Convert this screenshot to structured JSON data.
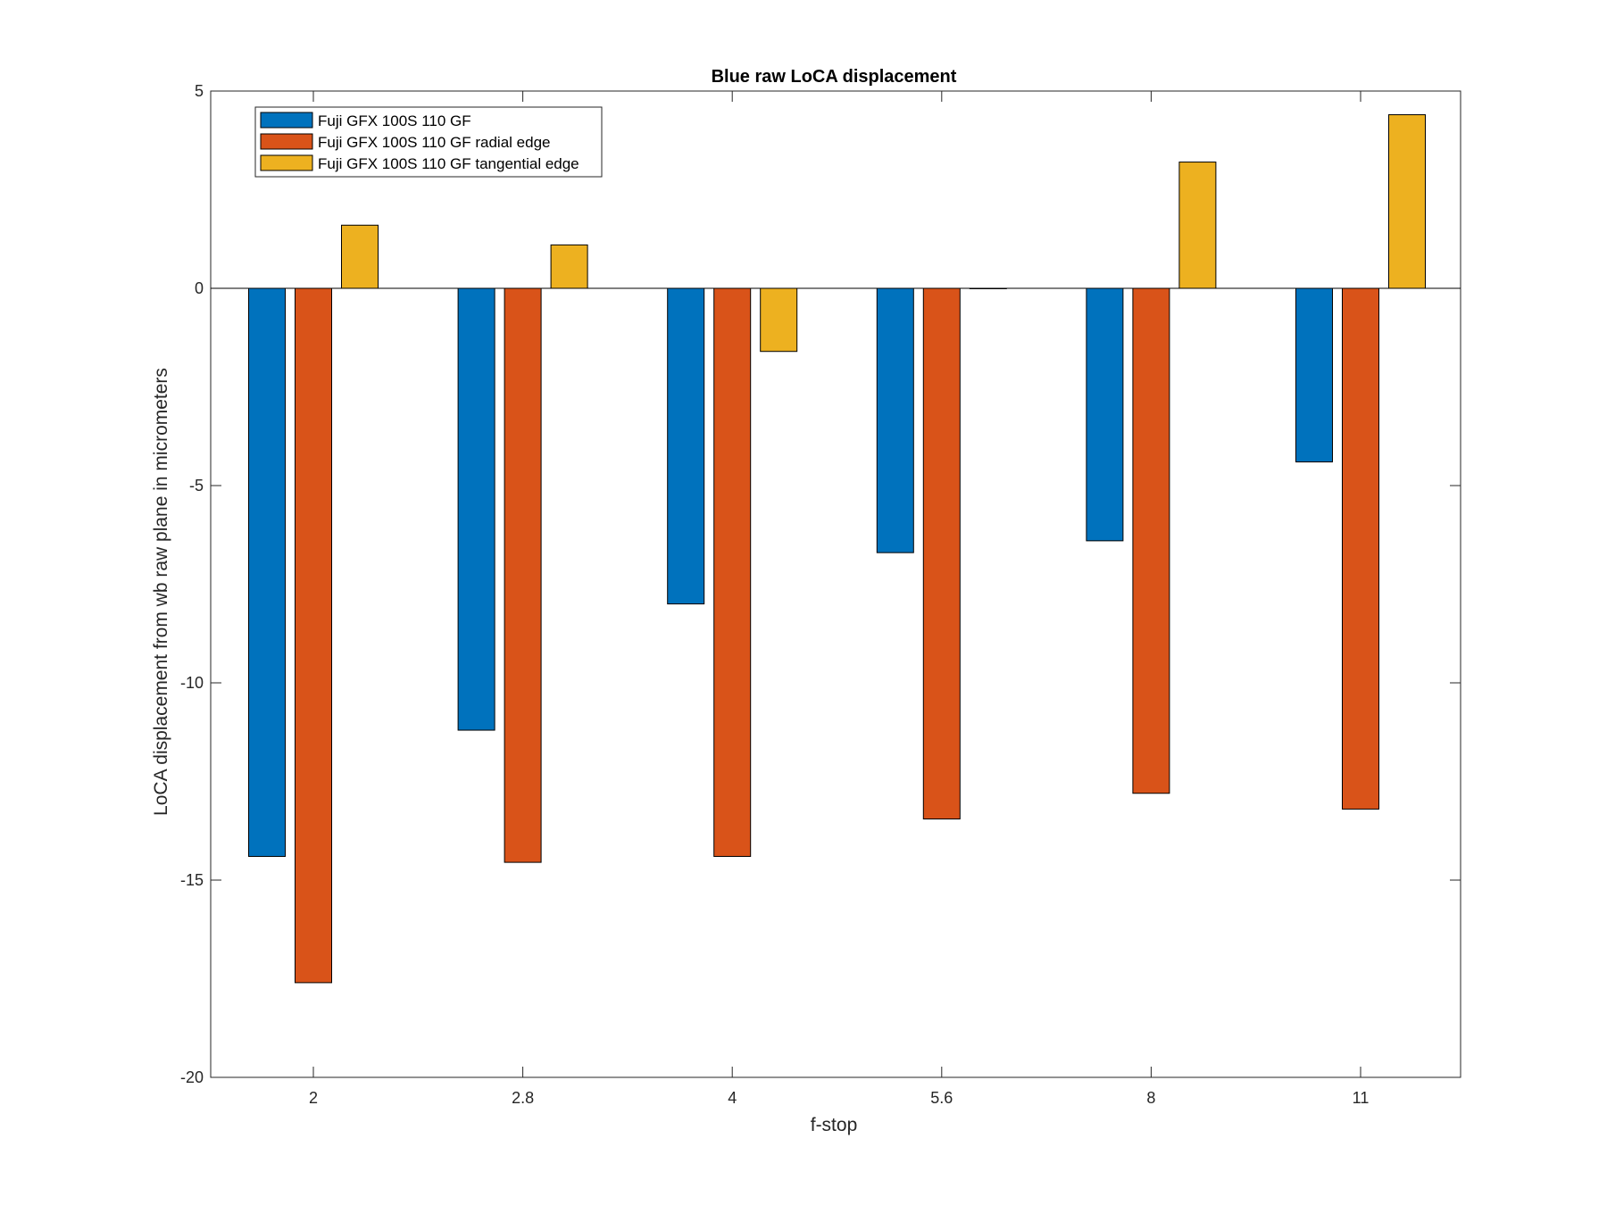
{
  "chart_data": {
    "type": "bar",
    "title": "Blue raw  LoCA displacement",
    "xlabel": "f-stop",
    "ylabel": "LoCA displacement from wb raw plane in micrometers",
    "categories": [
      "2",
      "2.8",
      "4",
      "5.6",
      "8",
      "11"
    ],
    "ylim": [
      -20,
      5
    ],
    "yticks": [
      5,
      0,
      -5,
      -10,
      -15,
      -20
    ],
    "grid": false,
    "legend_position": "top-left",
    "series": [
      {
        "name": "Fuji GFX 100S 110 GF",
        "color": "#0072BD",
        "values": [
          -14.4,
          -11.2,
          -8.0,
          -6.7,
          -6.4,
          -4.4
        ]
      },
      {
        "name": "Fuji GFX 100S 110 GF radial edge",
        "color": "#D95319",
        "values": [
          -17.6,
          -14.55,
          -14.4,
          -13.45,
          -12.8,
          -13.2
        ]
      },
      {
        "name": "Fuji GFX 100S 110 GF tangential edge",
        "color": "#EDB120",
        "values": [
          1.6,
          1.1,
          -1.6,
          0.0,
          3.2,
          4.4
        ]
      }
    ]
  }
}
